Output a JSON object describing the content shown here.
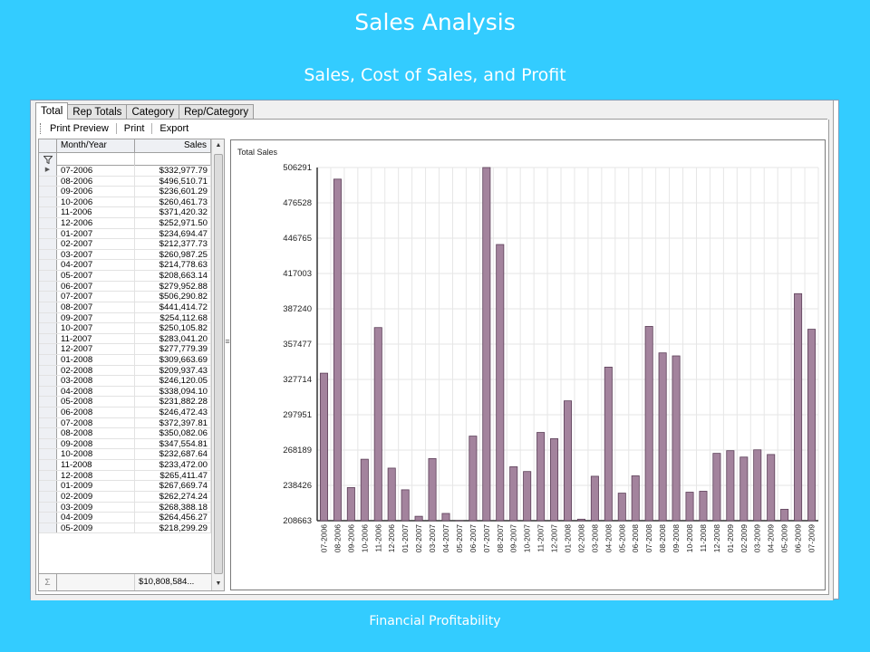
{
  "slide": {
    "title": "Sales Analysis",
    "subtitle": "Sales, Cost of Sales,  and Profit",
    "footer": "Financial Profitability"
  },
  "tabs": [
    "Total",
    "Rep Totals",
    "Category",
    "Rep/Category"
  ],
  "active_tab": "Total",
  "toolbar": {
    "print_preview": "Print Preview",
    "print": "Print",
    "export": "Export"
  },
  "grid": {
    "columns": [
      "Month/Year",
      "Sales"
    ],
    "rows": [
      {
        "month": "07-2006",
        "sales": "$332,977.79"
      },
      {
        "month": "08-2006",
        "sales": "$496,510.71"
      },
      {
        "month": "09-2006",
        "sales": "$236,601.29"
      },
      {
        "month": "10-2006",
        "sales": "$260,461.73"
      },
      {
        "month": "11-2006",
        "sales": "$371,420.32"
      },
      {
        "month": "12-2006",
        "sales": "$252,971.50"
      },
      {
        "month": "01-2007",
        "sales": "$234,694.47"
      },
      {
        "month": "02-2007",
        "sales": "$212,377.73"
      },
      {
        "month": "03-2007",
        "sales": "$260,987.25"
      },
      {
        "month": "04-2007",
        "sales": "$214,778.63"
      },
      {
        "month": "05-2007",
        "sales": "$208,663.14"
      },
      {
        "month": "06-2007",
        "sales": "$279,952.88"
      },
      {
        "month": "07-2007",
        "sales": "$506,290.82"
      },
      {
        "month": "08-2007",
        "sales": "$441,414.72"
      },
      {
        "month": "09-2007",
        "sales": "$254,112.68"
      },
      {
        "month": "10-2007",
        "sales": "$250,105.82"
      },
      {
        "month": "11-2007",
        "sales": "$283,041.20"
      },
      {
        "month": "12-2007",
        "sales": "$277,779.39"
      },
      {
        "month": "01-2008",
        "sales": "$309,663.69"
      },
      {
        "month": "02-2008",
        "sales": "$209,937.43"
      },
      {
        "month": "03-2008",
        "sales": "$246,120.05"
      },
      {
        "month": "04-2008",
        "sales": "$338,094.10"
      },
      {
        "month": "05-2008",
        "sales": "$231,882.28"
      },
      {
        "month": "06-2008",
        "sales": "$246,472.43"
      },
      {
        "month": "07-2008",
        "sales": "$372,397.81"
      },
      {
        "month": "08-2008",
        "sales": "$350,082.06"
      },
      {
        "month": "09-2008",
        "sales": "$347,554.81"
      },
      {
        "month": "10-2008",
        "sales": "$232,687.64"
      },
      {
        "month": "11-2008",
        "sales": "$233,472.00"
      },
      {
        "month": "12-2008",
        "sales": "$265,411.47"
      },
      {
        "month": "01-2009",
        "sales": "$267,669.74"
      },
      {
        "month": "02-2009",
        "sales": "$262,274.24"
      },
      {
        "month": "03-2009",
        "sales": "$268,388.18"
      },
      {
        "month": "04-2009",
        "sales": "$264,456.27"
      },
      {
        "month": "05-2009",
        "sales": "$218,299.29"
      }
    ],
    "total": "$10,808,584..."
  },
  "chart_data": {
    "type": "bar",
    "title": "Total Sales",
    "categories": [
      "07-2006",
      "08-2006",
      "09-2006",
      "10-2006",
      "11-2006",
      "12-2006",
      "01-2007",
      "02-2007",
      "03-2007",
      "04-2007",
      "05-2007",
      "06-2007",
      "07-2007",
      "08-2007",
      "09-2007",
      "10-2007",
      "11-2007",
      "12-2007",
      "01-2008",
      "02-2008",
      "03-2008",
      "04-2008",
      "05-2008",
      "06-2008",
      "07-2008",
      "08-2008",
      "09-2008",
      "10-2008",
      "11-2008",
      "12-2008",
      "01-2009",
      "02-2009",
      "03-2009",
      "04-2009",
      "05-2009",
      "06-2009",
      "07-2009"
    ],
    "values": [
      332977.79,
      496510.71,
      236601.29,
      260461.73,
      371420.32,
      252971.5,
      234694.47,
      212377.73,
      260987.25,
      214778.63,
      208663.14,
      279952.88,
      506290.82,
      441414.72,
      254112.68,
      250105.82,
      283041.2,
      277779.39,
      309663.69,
      209937.43,
      246120.05,
      338094.1,
      231882.28,
      246472.43,
      372397.81,
      350082.06,
      347554.81,
      232687.64,
      233472.0,
      265411.47,
      267669.74,
      262274.24,
      268388.18,
      264456.27,
      218299.29,
      400000,
      370000
    ],
    "ylim": [
      208663,
      506291
    ],
    "yticks": [
      "208663",
      "238426",
      "268189",
      "297951",
      "327714",
      "357477",
      "387240",
      "417003",
      "446765",
      "476528",
      "506291"
    ],
    "grid": true,
    "bar_color": "#a3839d",
    "bar_edge": "#5c3f58"
  },
  "colors": {
    "background": "#33ccff"
  }
}
